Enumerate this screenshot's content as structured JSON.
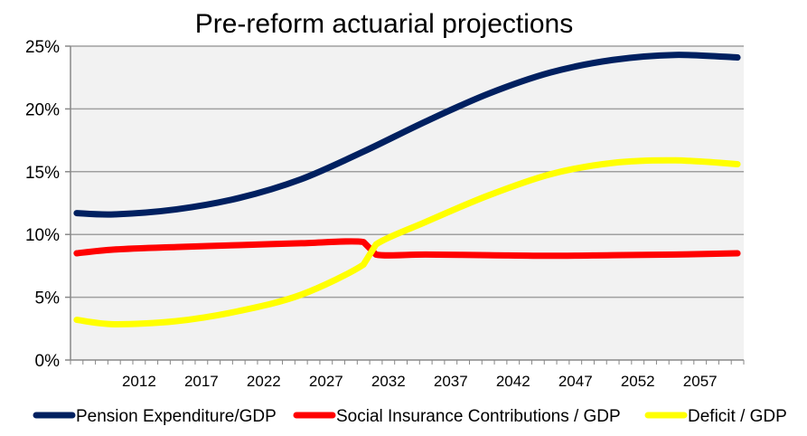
{
  "chart_data": {
    "type": "line",
    "title": "Pre-reform actuarial projections",
    "xlabel": "",
    "ylabel": "",
    "x_start": 2007,
    "x_end": 2060,
    "x_tick_labels": [
      "2012",
      "2017",
      "2022",
      "2027",
      "2032",
      "2037",
      "2042",
      "2047",
      "2052",
      "2057"
    ],
    "y_tick_labels": [
      "0%",
      "5%",
      "10%",
      "15%",
      "20%",
      "25%"
    ],
    "ylim": [
      0,
      25
    ],
    "grid": true,
    "legend_position": "bottom",
    "series": [
      {
        "name": "Pension Expenditure/GDP",
        "color": "#002060",
        "points": [
          [
            2007,
            11.7
          ],
          [
            2010,
            11.6
          ],
          [
            2015,
            12.0
          ],
          [
            2020,
            12.9
          ],
          [
            2025,
            14.4
          ],
          [
            2030,
            16.6
          ],
          [
            2035,
            19.0
          ],
          [
            2040,
            21.2
          ],
          [
            2045,
            22.9
          ],
          [
            2050,
            23.9
          ],
          [
            2055,
            24.3
          ],
          [
            2060,
            24.1
          ]
        ]
      },
      {
        "name": "Social Insurance Contributions / GDP",
        "color": "#FF0000",
        "points": [
          [
            2007,
            8.5
          ],
          [
            2010,
            8.8
          ],
          [
            2015,
            9.0
          ],
          [
            2020,
            9.15
          ],
          [
            2025,
            9.3
          ],
          [
            2030,
            9.4
          ],
          [
            2031,
            8.4
          ],
          [
            2035,
            8.4
          ],
          [
            2040,
            8.35
          ],
          [
            2045,
            8.3
          ],
          [
            2050,
            8.35
          ],
          [
            2055,
            8.4
          ],
          [
            2060,
            8.5
          ]
        ]
      },
      {
        "name": "Deficit / GDP",
        "color": "#FFFF00",
        "points": [
          [
            2007,
            3.2
          ],
          [
            2010,
            2.85
          ],
          [
            2015,
            3.1
          ],
          [
            2020,
            3.9
          ],
          [
            2025,
            5.2
          ],
          [
            2030,
            7.6
          ],
          [
            2031,
            9.2
          ],
          [
            2035,
            11.0
          ],
          [
            2040,
            13.1
          ],
          [
            2045,
            14.8
          ],
          [
            2050,
            15.7
          ],
          [
            2055,
            15.9
          ],
          [
            2060,
            15.6
          ]
        ]
      }
    ]
  }
}
